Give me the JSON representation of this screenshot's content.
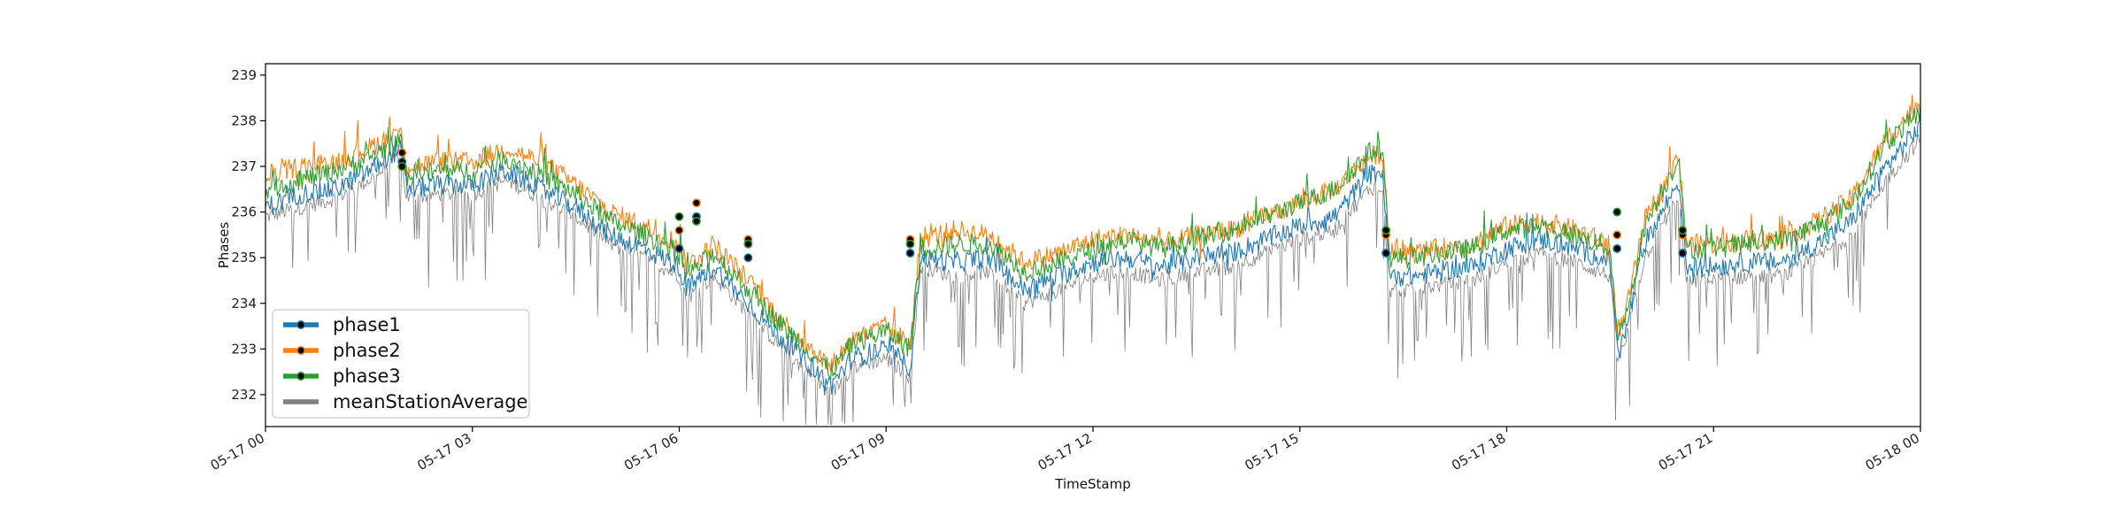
{
  "chart_data": {
    "type": "line",
    "xlabel": "TimeStamp",
    "ylabel": "Phases",
    "xlim": [
      "05-17 00:00",
      "05-18 00:00"
    ],
    "ylim": [
      231.3,
      239.25
    ],
    "grid": false,
    "legend_position": "lower-left",
    "x_ticks": [
      {
        "label": "05-17 00",
        "hour": 0
      },
      {
        "label": "05-17 03",
        "hour": 3
      },
      {
        "label": "05-17 06",
        "hour": 6
      },
      {
        "label": "05-17 09",
        "hour": 9
      },
      {
        "label": "05-17 12",
        "hour": 12
      },
      {
        "label": "05-17 15",
        "hour": 15
      },
      {
        "label": "05-17 18",
        "hour": 18
      },
      {
        "label": "05-17 21",
        "hour": 21
      },
      {
        "label": "05-18 00",
        "hour": 24
      }
    ],
    "y_ticks": [
      232,
      233,
      234,
      235,
      236,
      237,
      238,
      239
    ],
    "series": [
      {
        "name": "phase1",
        "color": "#1f77b4",
        "hours": [
          0,
          0.5,
          1,
          1.5,
          1.95,
          2.05,
          2.5,
          3,
          3.5,
          4,
          4.5,
          5,
          5.5,
          6,
          6.1,
          6.5,
          7,
          7.5,
          8,
          8.2,
          8.5,
          9,
          9.35,
          9.5,
          10,
          10.5,
          11,
          11.5,
          12,
          12.5,
          13,
          13.5,
          14,
          14.5,
          15,
          15.5,
          16,
          16.2,
          16.3,
          16.7,
          17,
          17.5,
          18,
          18.5,
          19,
          19.5,
          19.6,
          19.7,
          20,
          20.5,
          20.6,
          21,
          21.5,
          22,
          22.5,
          23,
          23.5,
          24
        ],
        "values": [
          236.1,
          236.4,
          236.5,
          236.9,
          237.4,
          236.5,
          236.6,
          236.6,
          236.9,
          236.5,
          236.1,
          235.5,
          235.2,
          234.8,
          234.3,
          234.8,
          234.0,
          233.2,
          232.5,
          232.2,
          232.8,
          233.0,
          232.6,
          235.0,
          234.9,
          235.0,
          234.3,
          234.6,
          234.9,
          235.0,
          234.8,
          235.0,
          235.1,
          235.4,
          235.7,
          235.9,
          236.8,
          236.9,
          234.6,
          234.6,
          234.7,
          234.8,
          235.2,
          235.4,
          235.2,
          234.9,
          233.0,
          233.2,
          235.3,
          236.7,
          234.8,
          234.8,
          234.9,
          234.9,
          235.3,
          235.8,
          237.0,
          237.9
        ]
      },
      {
        "name": "phase2",
        "color": "#ff7f0e",
        "hours": [
          0,
          0.5,
          1,
          1.5,
          1.95,
          2.05,
          2.5,
          3,
          3.5,
          4,
          4.5,
          5,
          5.5,
          6,
          6.1,
          6.5,
          7,
          7.5,
          8,
          8.2,
          8.5,
          9,
          9.35,
          9.5,
          10,
          10.5,
          11,
          11.5,
          12,
          12.5,
          13,
          13.5,
          14,
          14.5,
          15,
          15.5,
          16,
          16.2,
          16.3,
          16.7,
          17,
          17.5,
          18,
          18.5,
          19,
          19.5,
          19.6,
          19.7,
          20,
          20.5,
          20.6,
          21,
          21.5,
          22,
          22.5,
          23,
          23.5,
          24
        ],
        "values": [
          236.8,
          237.0,
          237.1,
          237.4,
          237.8,
          237.0,
          237.1,
          237.1,
          237.4,
          237.1,
          236.6,
          236.0,
          235.7,
          235.3,
          234.8,
          235.3,
          234.5,
          233.6,
          232.9,
          232.6,
          233.2,
          233.5,
          233.1,
          235.4,
          235.6,
          235.5,
          234.9,
          235.1,
          235.4,
          235.5,
          235.3,
          235.5,
          235.6,
          235.9,
          236.2,
          236.5,
          237.2,
          237.3,
          235.1,
          235.1,
          235.2,
          235.3,
          235.7,
          235.8,
          235.6,
          235.3,
          233.4,
          233.6,
          235.8,
          237.2,
          235.3,
          235.3,
          235.4,
          235.4,
          235.8,
          236.3,
          237.6,
          238.4
        ]
      },
      {
        "name": "phase3",
        "color": "#2ca02c",
        "hours": [
          0,
          0.5,
          1,
          1.5,
          1.95,
          2.05,
          2.5,
          3,
          3.5,
          4,
          4.5,
          5,
          5.5,
          6,
          6.1,
          6.5,
          7,
          7.5,
          8,
          8.2,
          8.5,
          9,
          9.35,
          9.5,
          10,
          10.5,
          11,
          11.5,
          12,
          12.5,
          13,
          13.5,
          14,
          14.5,
          15,
          15.5,
          16,
          16.2,
          16.3,
          16.7,
          17,
          17.5,
          18,
          18.5,
          19,
          19.5,
          19.6,
          19.7,
          20,
          20.5,
          20.6,
          21,
          21.5,
          22,
          22.5,
          23,
          23.5,
          24
        ],
        "values": [
          236.5,
          236.7,
          236.9,
          237.2,
          237.6,
          236.8,
          236.9,
          236.9,
          237.2,
          236.8,
          236.4,
          235.8,
          235.5,
          235.1,
          234.6,
          235.1,
          234.3,
          233.5,
          232.8,
          232.5,
          233.1,
          233.4,
          233.0,
          235.2,
          235.3,
          235.3,
          234.7,
          234.9,
          235.2,
          235.4,
          235.2,
          235.4,
          235.6,
          235.9,
          236.2,
          236.5,
          237.3,
          237.4,
          235.0,
          235.0,
          235.1,
          235.2,
          235.6,
          235.7,
          235.5,
          235.2,
          233.3,
          233.5,
          235.7,
          237.2,
          235.2,
          235.2,
          235.3,
          235.4,
          235.7,
          236.2,
          237.5,
          238.2
        ]
      },
      {
        "name": "meanStationAverage",
        "color": "#808080",
        "hours": [
          0,
          0.5,
          1,
          1.5,
          1.95,
          2.05,
          2.5,
          3,
          3.5,
          4,
          4.5,
          5,
          5.5,
          6,
          6.1,
          6.5,
          7,
          7.5,
          8,
          8.2,
          8.5,
          9,
          9.35,
          9.5,
          10,
          10.5,
          11,
          11.5,
          12,
          12.5,
          13,
          13.5,
          14,
          14.5,
          15,
          15.5,
          16,
          16.2,
          16.3,
          16.7,
          17,
          17.5,
          18,
          18.5,
          19,
          19.5,
          19.6,
          19.7,
          20,
          20.5,
          20.6,
          21,
          21.5,
          22,
          22.5,
          23,
          23.5,
          24
        ],
        "values": [
          235.9,
          236.1,
          236.3,
          236.7,
          237.2,
          236.3,
          236.4,
          236.4,
          236.7,
          236.3,
          235.9,
          235.3,
          235.0,
          234.6,
          234.1,
          234.6,
          233.8,
          233.0,
          232.3,
          232.0,
          232.6,
          232.8,
          232.4,
          234.8,
          234.6,
          234.7,
          234.0,
          234.3,
          234.6,
          234.7,
          234.5,
          234.7,
          234.8,
          235.1,
          235.4,
          235.6,
          236.5,
          236.6,
          234.3,
          234.3,
          234.4,
          234.5,
          234.9,
          235.1,
          234.9,
          234.6,
          232.8,
          233.0,
          235.0,
          236.4,
          234.5,
          234.5,
          234.6,
          234.6,
          235.0,
          235.5,
          236.7,
          237.6
        ]
      }
    ],
    "markers": {
      "phase1": [
        [
          1.98,
          237.1
        ],
        [
          6.0,
          235.2
        ],
        [
          6.25,
          235.9
        ],
        [
          7.0,
          235.0
        ],
        [
          9.35,
          235.1
        ],
        [
          16.25,
          235.1
        ],
        [
          19.6,
          235.2
        ],
        [
          20.55,
          235.1
        ]
      ],
      "phase2": [
        [
          1.98,
          237.3
        ],
        [
          6.0,
          235.6
        ],
        [
          6.25,
          236.2
        ],
        [
          7.0,
          235.4
        ],
        [
          9.35,
          235.4
        ],
        [
          16.25,
          235.5
        ],
        [
          19.6,
          235.5
        ],
        [
          20.55,
          235.5
        ]
      ],
      "phase3": [
        [
          1.98,
          237.0
        ],
        [
          6.0,
          235.9
        ],
        [
          6.25,
          235.8
        ],
        [
          7.0,
          235.3
        ],
        [
          9.35,
          235.3
        ],
        [
          16.25,
          235.6
        ],
        [
          19.6,
          236.0
        ],
        [
          20.55,
          235.6
        ]
      ]
    }
  },
  "legend": {
    "items": [
      {
        "label": "phase1",
        "color": "#1f77b4"
      },
      {
        "label": "phase2",
        "color": "#ff7f0e"
      },
      {
        "label": "phase3",
        "color": "#2ca02c"
      },
      {
        "label": "meanStationAverage",
        "color": "#808080"
      }
    ]
  }
}
